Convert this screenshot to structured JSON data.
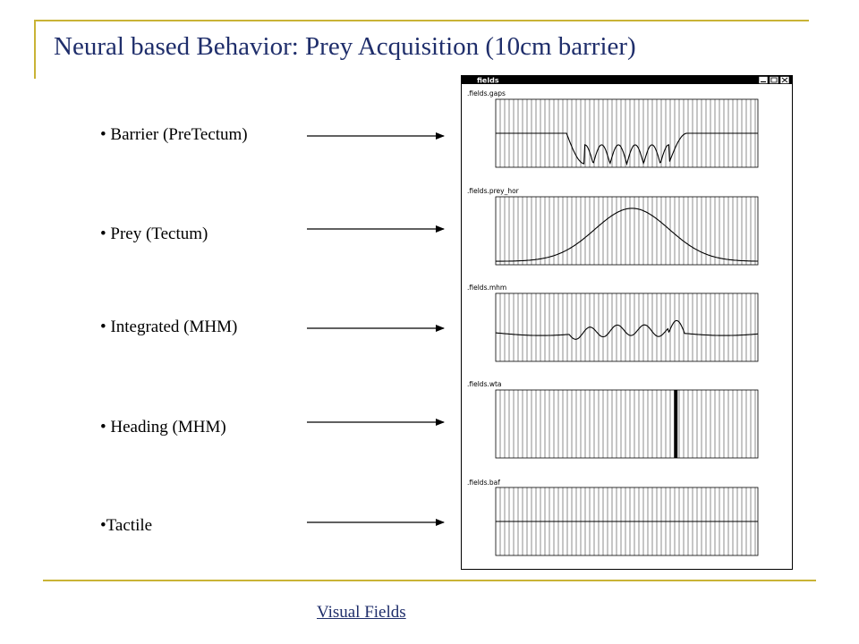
{
  "slide": {
    "title": "Neural based Behavior: Prey Acquisition (10cm barrier)",
    "accent_color": "#c9b336",
    "title_color": "#1f2e6b"
  },
  "bullets": [
    {
      "label": "• Barrier (PreTectum)"
    },
    {
      "label": "• Prey (Tectum)"
    },
    {
      "label": "• Integrated (MHM)"
    },
    {
      "label": "• Heading (MHM)"
    },
    {
      "label": "•Tactile"
    }
  ],
  "fields_window": {
    "title": "fields",
    "buttons": [
      "minimize",
      "maximize",
      "close"
    ],
    "panels": [
      {
        "label": ".fields.gaps",
        "signal": "barrier-gaps"
      },
      {
        "label": ".fields.prey_hor",
        "signal": "prey-gaussian"
      },
      {
        "label": ".fields.mhm",
        "signal": "integrated"
      },
      {
        "label": ".fields.wta",
        "signal": "winner-take-all"
      },
      {
        "label": ".fields.baf",
        "signal": "flat"
      }
    ]
  },
  "footer": {
    "link_text": "Visual Fields"
  }
}
